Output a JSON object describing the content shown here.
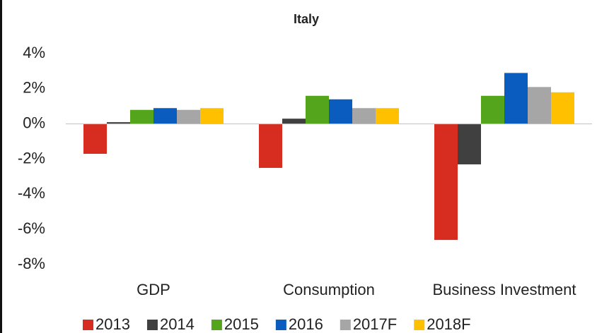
{
  "chart_data": {
    "type": "bar",
    "title": "Italy",
    "categories": [
      "GDP",
      "Consumption",
      "Business Investment"
    ],
    "series": [
      {
        "name": "2013",
        "color": "#d62d20",
        "values": [
          -1.7,
          -2.5,
          -6.6
        ]
      },
      {
        "name": "2014",
        "color": "#404040",
        "values": [
          0.1,
          0.3,
          -2.3
        ]
      },
      {
        "name": "2015",
        "color": "#55a51c",
        "values": [
          0.8,
          1.6,
          1.6
        ]
      },
      {
        "name": "2016",
        "color": "#0a5cbf",
        "values": [
          0.9,
          1.4,
          2.9
        ]
      },
      {
        "name": "2017F",
        "color": "#a6a6a6",
        "values": [
          0.8,
          0.9,
          2.1
        ]
      },
      {
        "name": "2018F",
        "color": "#ffc000",
        "values": [
          0.9,
          0.9,
          1.8
        ]
      }
    ],
    "ylim": [
      -8,
      4
    ],
    "yticks": [
      {
        "value": -8,
        "label": "-8%"
      },
      {
        "value": -6,
        "label": "-6%"
      },
      {
        "value": -4,
        "label": "-4%"
      },
      {
        "value": -2,
        "label": "-2%"
      },
      {
        "value": 0,
        "label": "0%"
      },
      {
        "value": 2,
        "label": "2%"
      },
      {
        "value": 4,
        "label": "4%"
      }
    ],
    "grid": false,
    "legend": "bottom"
  }
}
